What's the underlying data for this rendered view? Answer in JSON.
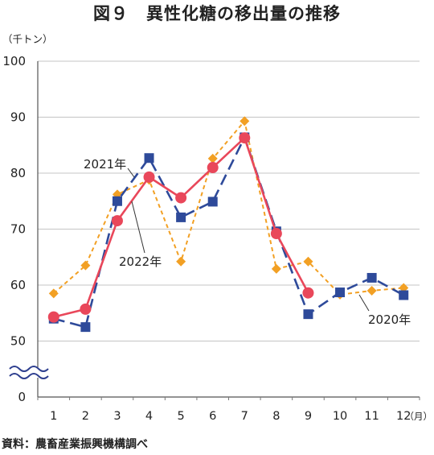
{
  "chart_data": {
    "type": "line",
    "title": "図９　異性化糖の移出量の推移",
    "ylabel": "（千トン）",
    "xlabel": "（月）",
    "x": [
      1,
      2,
      3,
      4,
      5,
      6,
      7,
      8,
      9,
      10,
      11,
      12
    ],
    "ylim": [
      0,
      100
    ],
    "yticks": [
      0,
      50,
      60,
      70,
      80,
      90,
      100
    ],
    "y_axis_break": [
      0,
      50
    ],
    "grid": true,
    "series": [
      {
        "name": "2020年",
        "color": "#F2A024",
        "marker": "diamond",
        "line_style": "dashed",
        "values": [
          58.5,
          63.5,
          76.2,
          78.8,
          64.2,
          82.6,
          89.3,
          62.9,
          64.2,
          58.3,
          59.0,
          59.5
        ]
      },
      {
        "name": "2021年",
        "color": "#2E4A9A",
        "marker": "square",
        "line_style": "long-dashed",
        "values": [
          54.0,
          52.5,
          75.0,
          82.7,
          72.1,
          74.9,
          86.4,
          69.6,
          54.8,
          58.7,
          61.3,
          58.2
        ]
      },
      {
        "name": "2022年",
        "color": "#E9475A",
        "marker": "circle",
        "line_style": "solid",
        "values": [
          54.3,
          55.7,
          71.5,
          79.3,
          75.6,
          81.0,
          86.3,
          69.2,
          58.6,
          null,
          null,
          null
        ]
      }
    ],
    "source": "資料：農畜産業振興機構調べ"
  }
}
